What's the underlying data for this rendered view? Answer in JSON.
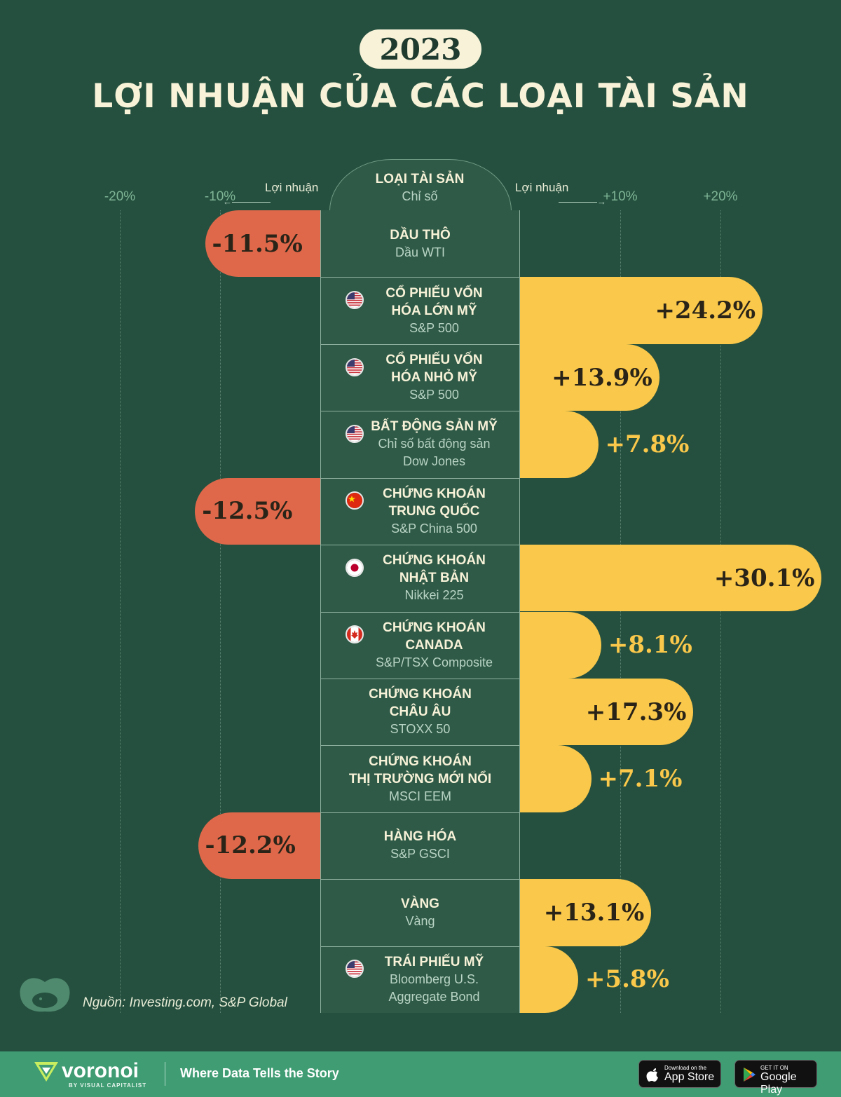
{
  "header": {
    "year": "2023",
    "title": "LỢI NHUẬN CỦA CÁC LOẠI TÀI SẢN",
    "column_title": "LOẠI TÀI SẢN",
    "column_subtitle": "Chỉ số",
    "left_axis_label": "Lợi nhuận",
    "right_axis_label": "Lợi nhuận"
  },
  "chart_data": {
    "type": "bar",
    "orientation": "horizontal-diverging",
    "x_ticks": [
      "-20%",
      "-10%",
      "+10%",
      "+20%"
    ],
    "grid": true,
    "unit": "%",
    "colors": {
      "negative": "#e0684a",
      "positive": "#fac84a",
      "background": "#25503f"
    },
    "rows": [
      {
        "name": [
          "DẦU THÔ"
        ],
        "index": [
          "Dầu WTI"
        ],
        "flag": "",
        "value": -11.5,
        "label": "-11.5%"
      },
      {
        "name": [
          "CỔ PHIẾU VỐN",
          "HÓA LỚN MỸ"
        ],
        "index": [
          "S&P 500"
        ],
        "flag": "us-flag-icon",
        "value": 24.2,
        "label": "+24.2%"
      },
      {
        "name": [
          "CỔ PHIẾU VỐN",
          "HÓA NHỎ MỸ"
        ],
        "index": [
          "S&P 500"
        ],
        "flag": "us-flag-icon",
        "value": 13.9,
        "label": "+13.9%"
      },
      {
        "name": [
          "BẤT ĐỘNG SẢN MỸ"
        ],
        "index": [
          "Chỉ số bất động sản",
          "Dow Jones"
        ],
        "flag": "us-flag-icon",
        "value": 7.8,
        "label": "+7.8%"
      },
      {
        "name": [
          "CHỨNG KHOÁN",
          "TRUNG QUỐC"
        ],
        "index": [
          "S&P China 500"
        ],
        "flag": "china-flag-icon",
        "value": -12.5,
        "label": "-12.5%"
      },
      {
        "name": [
          "CHỨNG KHOÁN",
          "NHẬT BẢN"
        ],
        "index": [
          "Nikkei 225"
        ],
        "flag": "japan-flag-icon",
        "value": 30.1,
        "label": "+30.1%"
      },
      {
        "name": [
          "CHỨNG KHOÁN",
          "CANADA"
        ],
        "index": [
          "S&P/TSX Composite"
        ],
        "flag": "canada-flag-icon",
        "value": 8.1,
        "label": "+8.1%"
      },
      {
        "name": [
          "CHỨNG KHOÁN",
          "CHÂU ÂU"
        ],
        "index": [
          "STOXX 50"
        ],
        "flag": "",
        "value": 17.3,
        "label": "+17.3%"
      },
      {
        "name": [
          "CHỨNG KHOÁN",
          "THỊ TRƯỜNG MỚI NỔI"
        ],
        "index": [
          "MSCI EEM"
        ],
        "flag": "",
        "value": 7.1,
        "label": "+7.1%"
      },
      {
        "name": [
          "HÀNG HÓA"
        ],
        "index": [
          "S&P GSCI"
        ],
        "flag": "",
        "value": -12.2,
        "label": "-12.2%"
      },
      {
        "name": [
          "VÀNG"
        ],
        "index": [
          "Vàng"
        ],
        "flag": "",
        "value": 13.1,
        "label": "+13.1%"
      },
      {
        "name": [
          "TRÁI PHIẾU MỸ"
        ],
        "index": [
          "Bloomberg U.S.",
          "Aggregate Bond"
        ],
        "flag": "us-flag-icon",
        "value": 5.8,
        "label": "+5.8%"
      }
    ]
  },
  "source": "Nguồn: Investing.com, S&P Global",
  "footer": {
    "brand": "voronoi",
    "brand_sub": "BY VISUAL CAPITALIST",
    "tagline": "Where Data Tells the Story",
    "app_store_small": "Download on the",
    "app_store_big": "App Store",
    "google_small": "GET IT ON",
    "google_big": "Google Play"
  }
}
